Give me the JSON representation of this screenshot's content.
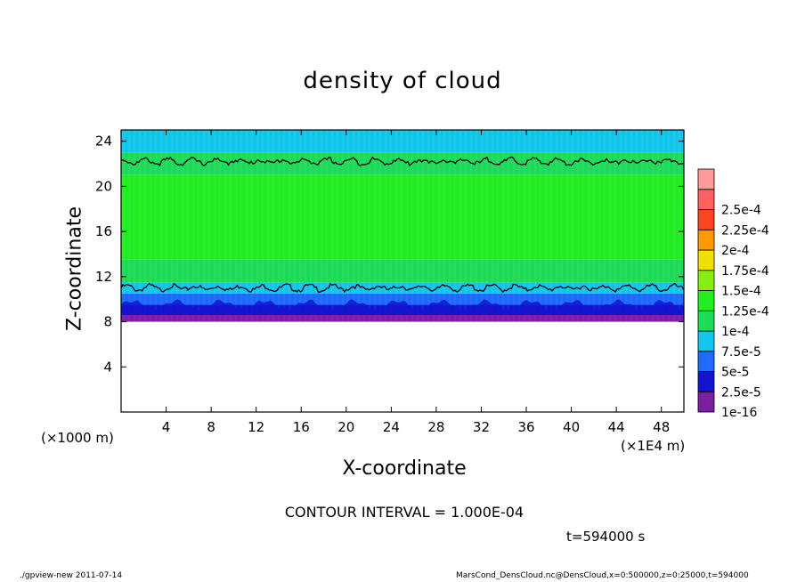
{
  "chart_data": {
    "type": "heatmap",
    "title": "density of cloud",
    "xlabel": "X-coordinate",
    "ylabel": "Z-coordinate",
    "x_unit": "(×1E4 m)",
    "z_unit": "(×1000 m)",
    "xlim": [
      0,
      50
    ],
    "ylim": [
      0,
      25
    ],
    "x_ticks": [
      4,
      8,
      12,
      16,
      20,
      24,
      28,
      32,
      36,
      40,
      44,
      48
    ],
    "y_ticks": [
      4,
      8,
      12,
      16,
      20,
      24
    ],
    "colorbar": {
      "levels": [
        "1e-16",
        "2.5e-5",
        "5e-5",
        "7.5e-5",
        "1e-4",
        "1.25e-4",
        "1.5e-4",
        "1.75e-4",
        "2e-4",
        "2.25e-4",
        "2.5e-4"
      ],
      "colors": [
        "#7a1fa2",
        "#1414d0",
        "#1f6bff",
        "#12c7ec",
        "#1edc5a",
        "#22ee22",
        "#88ee11",
        "#f0e000",
        "#ff9a00",
        "#ff4422",
        "#ff6060",
        "#ff9a9a"
      ]
    },
    "field_bands": [
      {
        "z_from": 8.0,
        "z_to": 8.6,
        "value": "1e-16"
      },
      {
        "z_from": 8.6,
        "z_to": 9.5,
        "value": "2.5e-5"
      },
      {
        "z_from": 9.5,
        "z_to": 10.5,
        "value": "5e-5"
      },
      {
        "z_from": 10.5,
        "z_to": 11.5,
        "value": "7.5e-5"
      },
      {
        "z_from": 11.5,
        "z_to": 13.5,
        "value": "1e-4"
      },
      {
        "z_from": 13.5,
        "z_to": 21.0,
        "value": "1.25e-4"
      },
      {
        "z_from": 21.0,
        "z_to": 23.0,
        "value": "1e-4"
      },
      {
        "z_from": 23.0,
        "z_to": 25.0,
        "value": "7.5e-5"
      }
    ],
    "contour_lines_z": [
      11.0,
      22.2
    ],
    "contour_interval": "1.000E-04"
  },
  "labels": {
    "contour_text": "CONTOUR INTERVAL = 1.000E-04",
    "time_text": "t=594000 s",
    "footer_left": "./gpview-new   2011-07-14",
    "footer_right": "MarsCond_DensCloud.nc@DensCloud,x=0:500000,z=0:25000,t=594000"
  }
}
